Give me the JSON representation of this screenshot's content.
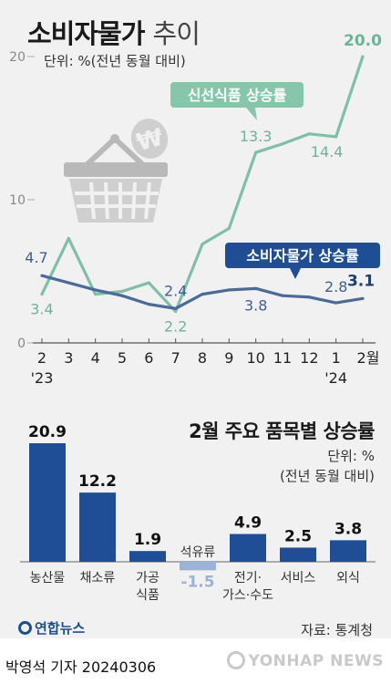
{
  "title": {
    "main": "소비자물가",
    "sub": "추이"
  },
  "unit_label": "단위: %(전년 동월 대비)",
  "chart_data": [
    {
      "type": "line",
      "title": "소비자물가 추이",
      "x": [
        "2",
        "3",
        "4",
        "5",
        "6",
        "7",
        "8",
        "9",
        "10",
        "11",
        "12",
        "1",
        "2월"
      ],
      "x_year_labels": [
        {
          "index": 0,
          "label": "'23"
        },
        {
          "index": 11,
          "label": "'24"
        }
      ],
      "ylim": [
        0,
        20
      ],
      "yticks": [
        {
          "value": 0,
          "label": "0"
        },
        {
          "value": 10,
          "label": "10"
        },
        {
          "value": 20,
          "label": "20"
        }
      ],
      "series": [
        {
          "name": "신선식품 상승률",
          "color": "#7fbfa6",
          "values": [
            3.4,
            7.3,
            3.4,
            3.6,
            4.2,
            2.2,
            6.9,
            8.0,
            13.3,
            13.9,
            14.6,
            14.4,
            20.0
          ],
          "labels": [
            {
              "index": 0,
              "text": "3.4"
            },
            {
              "index": 5,
              "text": "2.2"
            },
            {
              "index": 8,
              "text": "13.3"
            },
            {
              "index": 11,
              "text": "14.4"
            },
            {
              "index": 12,
              "text": "20.0"
            }
          ]
        },
        {
          "name": "소비자물가 상승률",
          "color": "#4a6a9a",
          "values": [
            4.7,
            4.2,
            3.7,
            3.3,
            2.7,
            2.4,
            3.4,
            3.7,
            3.8,
            3.3,
            3.2,
            2.8,
            3.1
          ],
          "labels": [
            {
              "index": 0,
              "text": "4.7"
            },
            {
              "index": 5,
              "text": "2.4"
            },
            {
              "index": 8,
              "text": "3.8"
            },
            {
              "index": 11,
              "text": "2.8"
            },
            {
              "index": 12,
              "text": "3.1"
            }
          ]
        }
      ],
      "grid": false
    },
    {
      "type": "bar",
      "title": "2월 주요 품목별 상승률",
      "unit": "단위: %",
      "unit_note": "(전년 동월 대비)",
      "categories": [
        "농산물",
        "채소류",
        "가공\n식품",
        "석유류",
        "전기·\n가스·수도",
        "서비스",
        "외식"
      ],
      "values": [
        20.9,
        12.2,
        1.9,
        -1.5,
        4.9,
        2.5,
        3.8
      ],
      "value_labels": [
        "20.9",
        "12.2",
        "1.9",
        "-1.5",
        "4.9",
        "2.5",
        "3.8"
      ],
      "colors": {
        "positive": "#1f4e96",
        "negative": "#9bb3d6"
      }
    }
  ],
  "logo_text": "연합뉴스",
  "source": "자료: 통계청",
  "byline": "박영석 기자  20240306",
  "watermark": "YONHAP NEWS",
  "colors": {
    "background": "#f1f1f1",
    "green_label_bg": "#86c6aa",
    "blue_label_bg": "#1f4e96"
  }
}
